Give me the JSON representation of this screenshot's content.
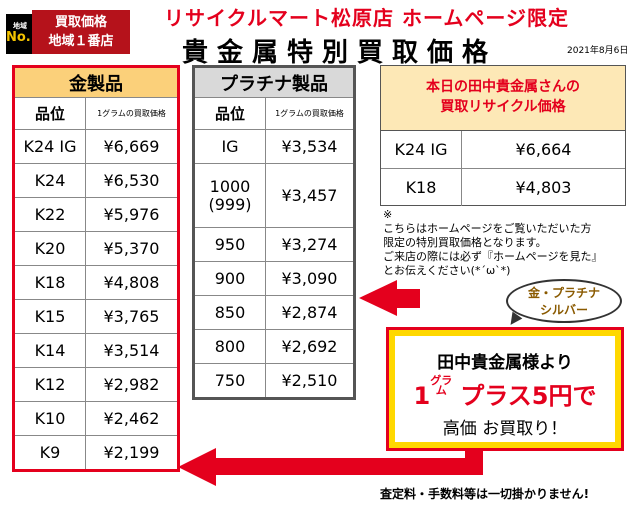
{
  "badge": {
    "no1_small": "地域",
    "no1": "No.1",
    "line1": "買取価格",
    "line2": "地域１番店"
  },
  "header": {
    "shop_title": "リサイクルマート松原店 ホームページ限定",
    "main_title": "貴金属特別買取価格",
    "date": "2021年8月6日"
  },
  "gold_table": {
    "title": "金製品",
    "col_grade": "品位",
    "col_price": "1グラムの買取価格",
    "rows": [
      {
        "grade": "K24 IG",
        "price": "¥6,669"
      },
      {
        "grade": "K24",
        "price": "¥6,530"
      },
      {
        "grade": "K22",
        "price": "¥5,976"
      },
      {
        "grade": "K20",
        "price": "¥5,370"
      },
      {
        "grade": "K18",
        "price": "¥4,808"
      },
      {
        "grade": "K15",
        "price": "¥3,765"
      },
      {
        "grade": "K14",
        "price": "¥3,514"
      },
      {
        "grade": "K12",
        "price": "¥2,982"
      },
      {
        "grade": "K10",
        "price": "¥2,462"
      },
      {
        "grade": "K9",
        "price": "¥2,199"
      }
    ]
  },
  "platinum_table": {
    "title": "プラチナ製品",
    "col_grade": "品位",
    "col_price": "1グラムの買取価格",
    "rows": [
      {
        "grade": "IG",
        "price": "¥3,534"
      },
      {
        "grade": "1000\n(999)",
        "price": "¥3,457"
      },
      {
        "grade": "950",
        "price": "¥3,274"
      },
      {
        "grade": "900",
        "price": "¥3,090"
      },
      {
        "grade": "850",
        "price": "¥2,874"
      },
      {
        "grade": "800",
        "price": "¥2,692"
      },
      {
        "grade": "750",
        "price": "¥2,510"
      }
    ]
  },
  "today": {
    "line1": "本日の田中貴金属さんの",
    "line2": "買取リサイクル価格",
    "rows": [
      {
        "grade": "K24 IG",
        "price": "¥6,664"
      },
      {
        "grade": "K18",
        "price": "¥4,803"
      }
    ]
  },
  "note": {
    "mark": "※",
    "line1": "こちらはホームページをご覧いただいた方",
    "line2": "限定の特別買取価格となります。",
    "line3": "ご来店の際には必ず『ホームページを見た』",
    "line4": "とお伝えください(*ˊωˋ*)"
  },
  "bubble": {
    "line1": "金・プラチナ",
    "line2": "シルバー"
  },
  "promo": {
    "line1": "田中貴金属様より",
    "num": "1",
    "unit_top": "グラ",
    "unit_bottom": "ム",
    "plus": "プラス5円で",
    "line3": "高価 お買取り！"
  },
  "footer": "査定料・手数料等は一切掛かりません!",
  "colors": {
    "red": "#e4001d",
    "gold_header": "#fbd07a",
    "platinum_header": "#d9d9d9",
    "promo_yellow": "#ffd800"
  }
}
